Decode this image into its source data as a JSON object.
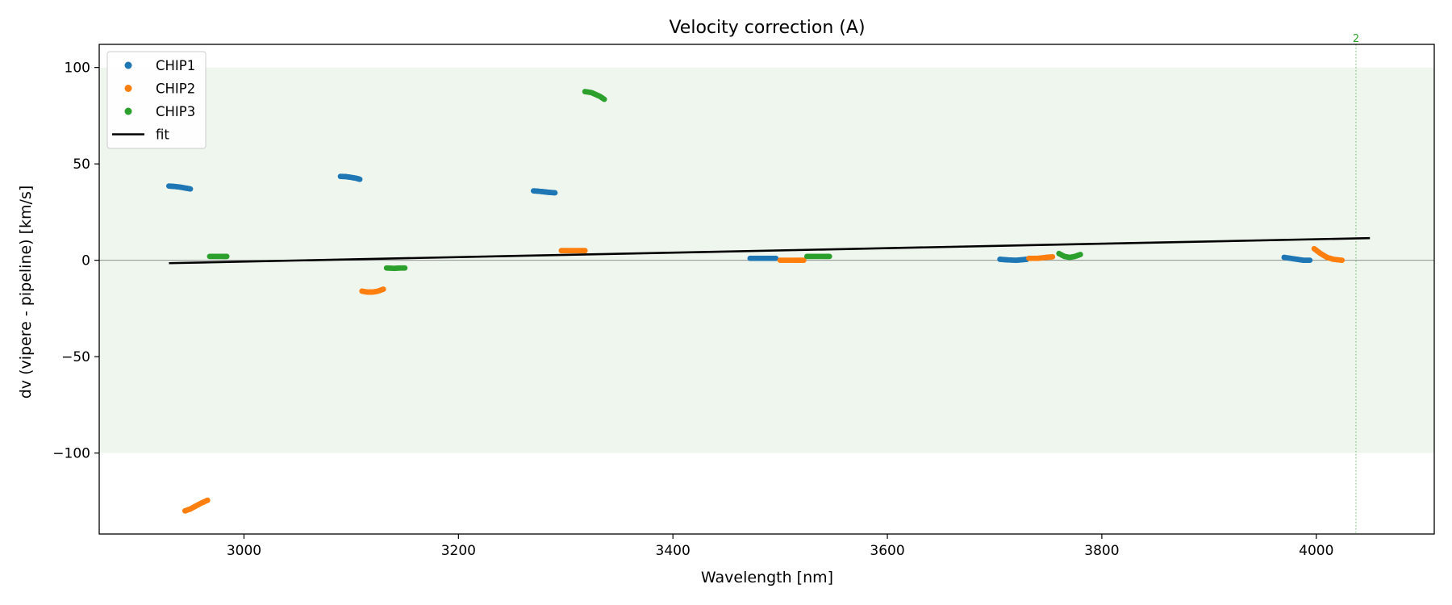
{
  "chart_data": {
    "type": "scatter",
    "title": "Velocity correction (A)",
    "xlabel": "Wavelength [nm]",
    "ylabel": "dv (vipere - pipeline) [km/s]",
    "xlim": [
      2865,
      4110
    ],
    "ylim": [
      -142,
      112
    ],
    "xticks": [
      3000,
      3200,
      3400,
      3600,
      3800,
      4000
    ],
    "xtick_labels": [
      "3000",
      "3200",
      "3400",
      "3600",
      "3800",
      "4000"
    ],
    "yticks": [
      100,
      50,
      0,
      -50,
      -100
    ],
    "ytick_labels": [
      "100",
      "50",
      "0",
      "−50",
      "−100"
    ],
    "shaded_band": {
      "y_from": -100,
      "y_to": 100,
      "color": "#eef6ee"
    },
    "zero_line": 0,
    "marker": {
      "x": 4037,
      "label": "2",
      "color": "#2ca02c"
    },
    "legend": {
      "position": "top-left"
    },
    "series": [
      {
        "name": "CHIP1",
        "color": "#1f77b4",
        "kind": "points",
        "segments": [
          [
            [
              2930,
              38.5
            ],
            [
              2935,
              38.3
            ],
            [
              2940,
              38.0
            ],
            [
              2945,
              37.5
            ],
            [
              2950,
              37.0
            ]
          ],
          [
            [
              3090,
              43.5
            ],
            [
              3095,
              43.4
            ],
            [
              3100,
              43.0
            ],
            [
              3105,
              42.5
            ],
            [
              3108,
              42.0
            ]
          ],
          [
            [
              3270,
              36.0
            ],
            [
              3275,
              35.8
            ],
            [
              3280,
              35.5
            ],
            [
              3285,
              35.2
            ],
            [
              3290,
              35.0
            ]
          ],
          [
            [
              3472,
              1.0
            ],
            [
              3480,
              1.0
            ],
            [
              3488,
              1.0
            ],
            [
              3496,
              1.0
            ]
          ],
          [
            [
              3705,
              0.5
            ],
            [
              3712,
              0.2
            ],
            [
              3720,
              0.0
            ],
            [
              3726,
              0.3
            ],
            [
              3730,
              0.5
            ]
          ],
          [
            [
              3970,
              1.5
            ],
            [
              3976,
              1.0
            ],
            [
              3982,
              0.5
            ],
            [
              3988,
              0.0
            ],
            [
              3994,
              0.0
            ]
          ]
        ]
      },
      {
        "name": "CHIP2",
        "color": "#ff7f0e",
        "kind": "points",
        "segments": [
          [
            [
              2945,
              -130
            ],
            [
              2950,
              -129
            ],
            [
              2955,
              -127.5
            ],
            [
              2960,
              -126
            ],
            [
              2966,
              -124.5
            ]
          ],
          [
            [
              3110,
              -16.0
            ],
            [
              3115,
              -16.5
            ],
            [
              3120,
              -16.5
            ],
            [
              3125,
              -16.0
            ],
            [
              3130,
              -15.0
            ]
          ],
          [
            [
              3296,
              5.0
            ],
            [
              3304,
              5.0
            ],
            [
              3312,
              5.0
            ],
            [
              3318,
              5.0
            ]
          ],
          [
            [
              3500,
              0.0
            ],
            [
              3508,
              0.0
            ],
            [
              3516,
              0.0
            ],
            [
              3522,
              0.0
            ]
          ],
          [
            [
              3732,
              1.0
            ],
            [
              3740,
              1.0
            ],
            [
              3748,
              1.5
            ],
            [
              3754,
              1.8
            ]
          ],
          [
            [
              3998,
              6.0
            ],
            [
              4004,
              3.5
            ],
            [
              4010,
              1.5
            ],
            [
              4016,
              0.5
            ],
            [
              4024,
              0.0
            ]
          ]
        ]
      },
      {
        "name": "CHIP3",
        "color": "#2ca02c",
        "kind": "points",
        "segments": [
          [
            [
              2968,
              2.0
            ],
            [
              2974,
              2.0
            ],
            [
              2980,
              2.0
            ],
            [
              2984,
              2.0
            ]
          ],
          [
            [
              3133,
              -4.0
            ],
            [
              3140,
              -4.2
            ],
            [
              3146,
              -4.0
            ],
            [
              3150,
              -4.0
            ]
          ],
          [
            [
              3318,
              87.5
            ],
            [
              3324,
              87.0
            ],
            [
              3328,
              86.0
            ],
            [
              3332,
              85.0
            ],
            [
              3336,
              83.5
            ]
          ],
          [
            [
              3525,
              2.0
            ],
            [
              3532,
              2.0
            ],
            [
              3540,
              2.0
            ],
            [
              3546,
              2.0
            ]
          ],
          [
            [
              3760,
              3.5
            ],
            [
              3765,
              2.0
            ],
            [
              3770,
              1.5
            ],
            [
              3775,
              2.0
            ],
            [
              3780,
              3.0
            ]
          ]
        ]
      },
      {
        "name": "fit",
        "color": "#000000",
        "kind": "line",
        "points": [
          [
            2930,
            -1.5
          ],
          [
            4050,
            11.5
          ]
        ]
      }
    ]
  }
}
